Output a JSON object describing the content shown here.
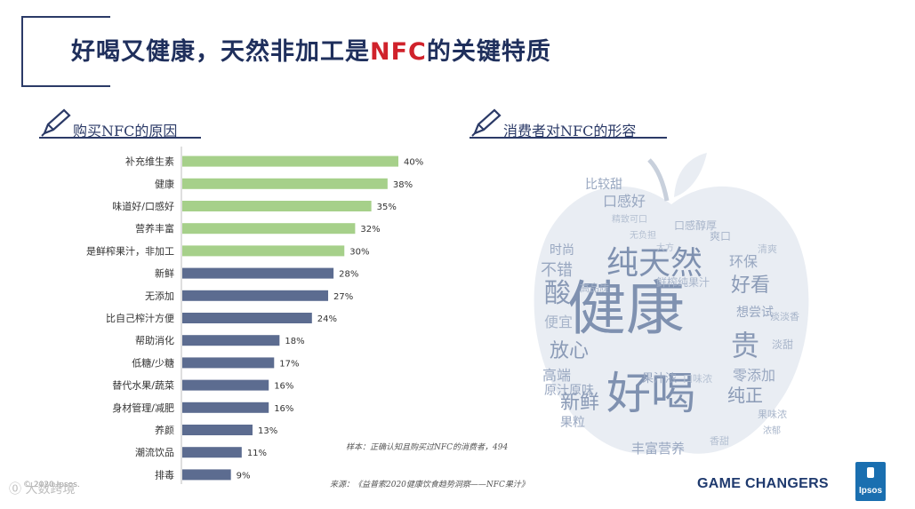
{
  "title": {
    "prefix": "好喝又健康，天然非加工是",
    "highlight": "NFC",
    "suffix": "的关键特质"
  },
  "left_section": {
    "label": "购买NFC的原因",
    "icon": "pencil-icon"
  },
  "right_section": {
    "label": "消费者对NFC的形容",
    "icon": "pencil-icon"
  },
  "colors": {
    "green": "#a6d08a",
    "navy": "#5c6c90",
    "title": "#1f2f5c",
    "highlight": "#d0222b"
  },
  "chart_data": {
    "type": "bar",
    "orientation": "horizontal",
    "categories": [
      "补充维生素",
      "健康",
      "味道好/口感好",
      "营养丰富",
      "是鲜榨果汁，非加工",
      "新鲜",
      "无添加",
      "比自己榨汁方便",
      "帮助消化",
      "低糖/少糖",
      "替代水果/蔬菜",
      "身材管理/减肥",
      "养颜",
      "潮流饮品",
      "排毒"
    ],
    "values": [
      40,
      38,
      35,
      32,
      30,
      28,
      27,
      24,
      18,
      17,
      16,
      16,
      13,
      11,
      9
    ],
    "data_labels": [
      "40%",
      "38%",
      "35%",
      "32%",
      "30%",
      "28%",
      "27%",
      "24%",
      "18%",
      "17%",
      "16%",
      "16%",
      "13%",
      "11%",
      "9%"
    ],
    "highlight_count": 5,
    "xlim": [
      0,
      45
    ],
    "grid": false,
    "legend": "none"
  },
  "wordcloud": {
    "shape": "apple",
    "words": [
      "健康",
      "好喝",
      "纯天然",
      "酸",
      "贵",
      "放心",
      "新鲜",
      "纯正",
      "好看",
      "环保",
      "不错",
      "时尚",
      "高端",
      "零添加",
      "口感好",
      "比较甜",
      "果汁浓",
      "原汁原味",
      "丰富营养",
      "果粒",
      "想尝试",
      "淡甜",
      "鲜榨纯果汁",
      "便宜",
      "高品质",
      "口感醇厚",
      "淡淡香",
      "果味浓",
      "浓郁",
      "爽口",
      "大方",
      "精致可口",
      "无负担",
      "清爽",
      "香甜",
      "口味浓"
    ]
  },
  "notes": {
    "sample": "样本：正确认知且购买过NFC的消费者，494",
    "source": "来源：《益普索2020健康饮食趋势洞察——NFC果汁》"
  },
  "footer": {
    "copyright": "© 2020 Ipsos.",
    "watermark": "大数跨境"
  },
  "brand": {
    "tagline": "GAME CHANGERS",
    "logo": "Ipsos"
  }
}
